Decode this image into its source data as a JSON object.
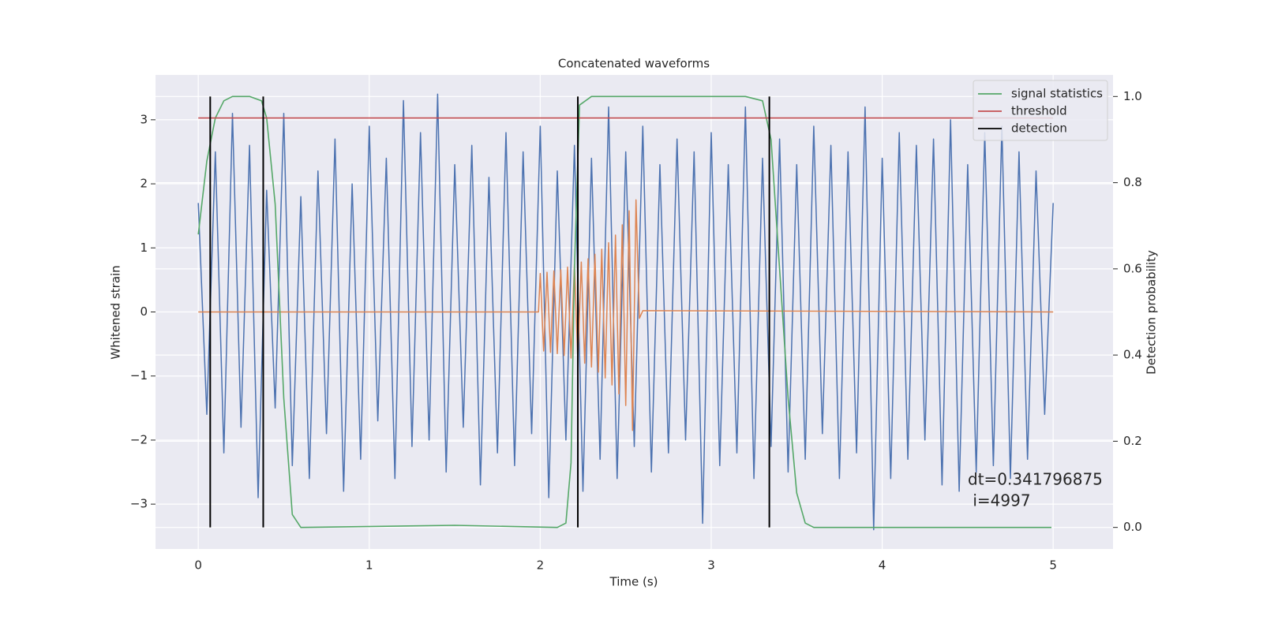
{
  "chart_data": {
    "type": "line",
    "title": "Concatenated waveforms",
    "xlabel": "Time (s)",
    "ylabel": "Whitened strain",
    "y2label": "Detection probability",
    "xlim": [
      -0.25,
      5.35
    ],
    "ylim": [
      -3.7,
      3.7
    ],
    "y2lim": [
      -0.05,
      1.05
    ],
    "xticks": [
      0,
      1,
      2,
      3,
      4,
      5
    ],
    "yticks": [
      {
        "value": -3,
        "label": "−3"
      },
      {
        "value": -2,
        "label": "−2"
      },
      {
        "value": -1,
        "label": "−1"
      },
      0,
      1,
      2,
      3
    ],
    "y2ticks": [
      {
        "value": 0,
        "label": "0.0"
      },
      0.2,
      0.4,
      0.6,
      0.8,
      {
        "value": 1,
        "label": "1.0"
      }
    ],
    "grid": true,
    "background": "#eaeaf2",
    "legend": "upper right",
    "strain": {
      "color": "#4c72b0",
      "x": [
        0,
        0.05,
        0.1,
        0.15,
        0.2,
        0.25,
        0.3,
        0.35,
        0.4,
        0.45,
        0.5,
        0.55,
        0.6,
        0.65,
        0.7,
        0.75,
        0.8,
        0.85,
        0.9,
        0.95,
        1,
        1.05,
        1.1,
        1.15,
        1.2,
        1.25,
        1.3,
        1.35,
        1.4,
        1.45,
        1.5,
        1.55,
        1.6,
        1.65,
        1.7,
        1.75,
        1.8,
        1.85,
        1.9,
        1.95,
        2,
        2.05,
        2.1,
        2.15,
        2.2,
        2.25,
        2.3,
        2.35,
        2.4,
        2.45,
        2.5,
        2.55,
        2.6,
        2.65,
        2.7,
        2.75,
        2.8,
        2.85,
        2.9,
        2.95,
        3,
        3.05,
        3.1,
        3.15,
        3.2,
        3.25,
        3.3,
        3.35,
        3.4,
        3.45,
        3.5,
        3.55,
        3.6,
        3.65,
        3.7,
        3.75,
        3.8,
        3.85,
        3.9,
        3.95,
        4,
        4.05,
        4.1,
        4.15,
        4.2,
        4.25,
        4.3,
        4.35,
        4.4,
        4.45,
        4.5,
        4.55,
        4.6,
        4.65,
        4.7,
        4.75,
        4.8,
        4.85,
        4.9,
        4.95,
        5
      ],
      "values": [
        1.7,
        -1.6,
        2.5,
        -2.2,
        3.1,
        -1.8,
        2.6,
        -2.9,
        1.9,
        -1.5,
        3.1,
        -2.4,
        1.8,
        -2.6,
        2.2,
        -1.9,
        2.7,
        -2.8,
        2.0,
        -2.3,
        2.9,
        -1.7,
        2.4,
        -2.6,
        3.3,
        -2.1,
        2.8,
        -2.0,
        3.4,
        -2.5,
        2.3,
        -1.8,
        2.6,
        -2.7,
        2.1,
        -2.2,
        2.8,
        -2.4,
        2.5,
        -1.9,
        2.9,
        -2.9,
        2.2,
        -2.0,
        2.6,
        -2.8,
        2.4,
        -2.3,
        3.2,
        -2.6,
        2.5,
        -2.1,
        2.9,
        -2.5,
        2.3,
        -2.2,
        2.7,
        -2.0,
        2.5,
        -3.3,
        2.8,
        -2.4,
        2.3,
        -2.2,
        3.2,
        -2.6,
        2.4,
        -2.1,
        2.7,
        -2.5,
        2.3,
        -2.3,
        2.9,
        -1.9,
        2.6,
        -2.6,
        2.5,
        -2.2,
        3.2,
        -3.4,
        2.4,
        -2.6,
        2.8,
        -2.3,
        2.6,
        -2.0,
        2.7,
        -2.7,
        3.0,
        -2.8,
        2.3,
        -2.5,
        2.8,
        -2.4,
        2.9,
        -2.6,
        2.5,
        -2.3,
        2.2,
        -1.6,
        1.7
      ]
    },
    "waveform": {
      "color": "#dd8452",
      "x": [
        0,
        1.99,
        2.0,
        2.02,
        2.04,
        2.06,
        2.08,
        2.1,
        2.12,
        2.14,
        2.16,
        2.18,
        2.2,
        2.22,
        2.24,
        2.26,
        2.28,
        2.3,
        2.32,
        2.34,
        2.36,
        2.38,
        2.4,
        2.42,
        2.44,
        2.46,
        2.48,
        2.5,
        2.52,
        2.54,
        2.56,
        2.58,
        2.6,
        5
      ],
      "values": [
        0,
        0,
        0.6,
        -0.61,
        0.62,
        -0.63,
        0.64,
        -0.65,
        0.66,
        -0.68,
        0.7,
        -0.72,
        0.74,
        -0.76,
        0.78,
        -0.8,
        0.83,
        -0.86,
        0.9,
        -0.94,
        0.98,
        -1.03,
        1.08,
        -1.14,
        1.2,
        -1.28,
        1.36,
        -1.46,
        1.58,
        -1.85,
        1.75,
        -0.1,
        0.02,
        0
      ]
    },
    "series": [
      {
        "name": "signal statistics",
        "color": "#55a868",
        "axis": "y2",
        "x": [
          0,
          0.05,
          0.1,
          0.15,
          0.2,
          0.3,
          0.37,
          0.4,
          0.45,
          0.5,
          0.55,
          0.6,
          1.5,
          2.1,
          2.15,
          2.18,
          2.2,
          2.23,
          2.3,
          3.2,
          3.3,
          3.35,
          3.4,
          3.45,
          3.5,
          3.55,
          3.6,
          4.99
        ],
        "values": [
          0.68,
          0.85,
          0.95,
          0.99,
          1.0,
          1.0,
          0.99,
          0.95,
          0.75,
          0.3,
          0.03,
          0.0,
          0.005,
          0.0,
          0.01,
          0.15,
          0.6,
          0.98,
          1.0,
          1.0,
          0.99,
          0.9,
          0.6,
          0.3,
          0.08,
          0.01,
          0.0,
          0.0
        ]
      },
      {
        "name": "threshold",
        "color": "#c44e52",
        "axis": "y2",
        "x": [
          0,
          5
        ],
        "values": [
          0.95,
          0.95
        ]
      }
    ],
    "detection": {
      "name": "detection",
      "color": "#000000",
      "x": [
        0.07,
        0.38,
        2.22,
        3.34
      ],
      "y2range": [
        0,
        1
      ]
    },
    "annotation": [
      "dt=0.341796875",
      " i=4997"
    ]
  }
}
